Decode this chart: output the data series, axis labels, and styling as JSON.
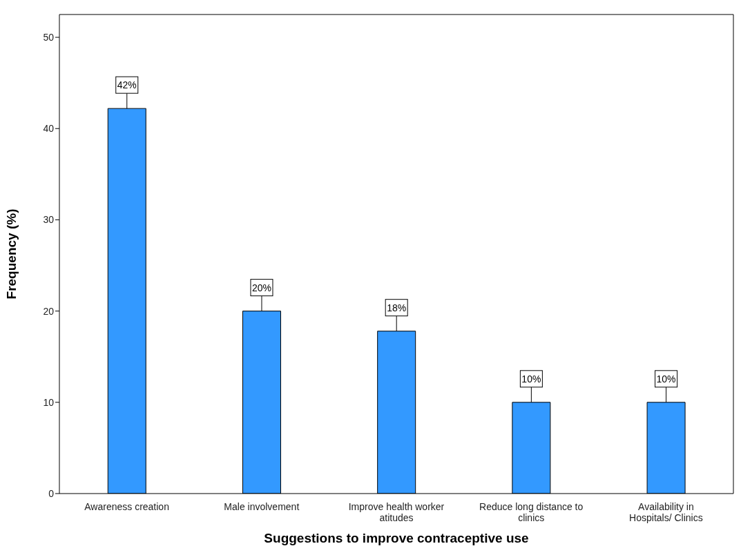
{
  "chart_data": {
    "type": "bar",
    "xlabel": "Suggestions to improve contraceptive use",
    "ylabel": "Frequency (%)",
    "categories": [
      "Awareness creation",
      "Male involvement",
      "Improve health worker atitudes",
      "Reduce long distance to clinics",
      "Availability in Hospitals/ Clinics"
    ],
    "values": [
      42.2,
      20,
      17.8,
      10,
      10
    ],
    "value_labels": [
      "42%",
      "20%",
      "18%",
      "10%",
      "10%"
    ],
    "color": "#3399ff",
    "ylim": [
      0,
      52.5
    ],
    "yticks": [
      0,
      10,
      20,
      30,
      40,
      50
    ],
    "grid": false
  }
}
